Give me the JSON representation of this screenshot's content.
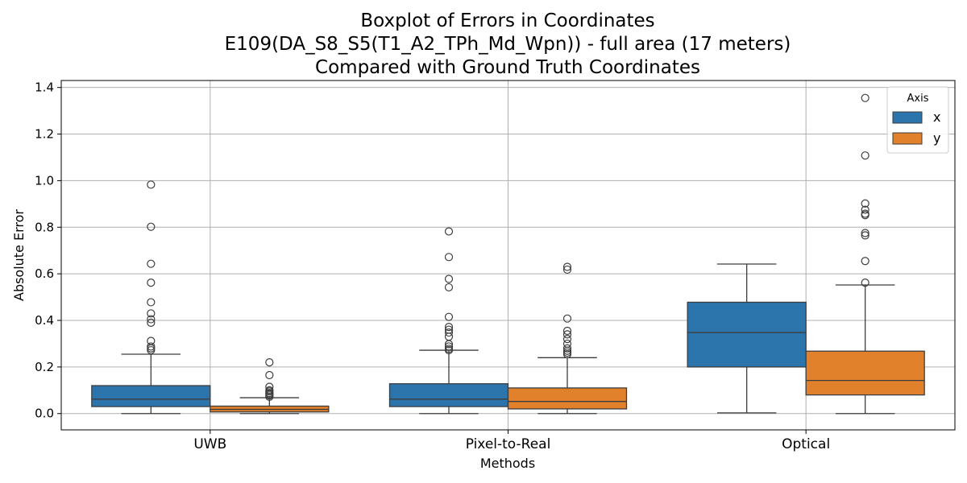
{
  "chart_data": {
    "type": "boxplot",
    "title_lines": [
      "Boxplot of Errors in Coordinates",
      "E109(DA_S8_S5(T1_A2_TPh_Md_Wpn)) - full area (17 meters)",
      "Compared with Ground Truth Coordinates"
    ],
    "xlabel": "Methods",
    "ylabel": "Absolute Error",
    "ylim": [
      -0.07,
      1.43
    ],
    "yticks": [
      "0.0",
      "0.2",
      "0.4",
      "0.6",
      "0.8",
      "1.0",
      "1.2",
      "1.4"
    ],
    "grid": true,
    "categories": [
      "UWB",
      "Pixel-to-Real",
      "Optical"
    ],
    "legend": {
      "title": "Axis",
      "placement": "top-right",
      "entries": [
        "x",
        "y"
      ]
    },
    "series": [
      {
        "name": "x",
        "color": "#2c74ac",
        "boxes": [
          {
            "category": "UWB",
            "whisker_low": 0.0,
            "q1": 0.03,
            "median": 0.062,
            "q3": 0.12,
            "whisker_high": 0.255,
            "outliers": [
              0.272,
              0.28,
              0.288,
              0.312,
              0.39,
              0.405,
              0.43,
              0.478,
              0.562,
              0.643,
              0.802,
              0.983
            ]
          },
          {
            "category": "Pixel-to-Real",
            "whisker_low": 0.0,
            "q1": 0.03,
            "median": 0.062,
            "q3": 0.128,
            "whisker_high": 0.272,
            "outliers": [
              0.272,
              0.278,
              0.288,
              0.298,
              0.33,
              0.348,
              0.36,
              0.372,
              0.415,
              0.542,
              0.578,
              0.672,
              0.782
            ]
          },
          {
            "category": "Optical",
            "whisker_low": 0.003,
            "q1": 0.2,
            "median": 0.348,
            "q3": 0.478,
            "whisker_high": 0.642,
            "outliers": []
          }
        ]
      },
      {
        "name": "y",
        "color": "#e1812c",
        "boxes": [
          {
            "category": "UWB",
            "whisker_low": 0.0,
            "q1": 0.007,
            "median": 0.018,
            "q3": 0.032,
            "whisker_high": 0.068,
            "outliers": [
              0.072,
              0.078,
              0.083,
              0.088,
              0.095,
              0.1,
              0.115,
              0.165,
              0.22
            ]
          },
          {
            "category": "Pixel-to-Real",
            "whisker_low": 0.0,
            "q1": 0.02,
            "median": 0.052,
            "q3": 0.11,
            "whisker_high": 0.24,
            "outliers": [
              0.255,
              0.262,
              0.27,
              0.28,
              0.3,
              0.32,
              0.34,
              0.355,
              0.408,
              0.618,
              0.63
            ]
          },
          {
            "category": "Optical",
            "whisker_low": 0.0,
            "q1": 0.08,
            "median": 0.142,
            "q3": 0.268,
            "whisker_high": 0.552,
            "outliers": [
              0.562,
              0.655,
              0.765,
              0.775,
              0.852,
              0.858,
              0.875,
              0.902,
              1.108,
              1.355
            ]
          }
        ]
      }
    ]
  }
}
